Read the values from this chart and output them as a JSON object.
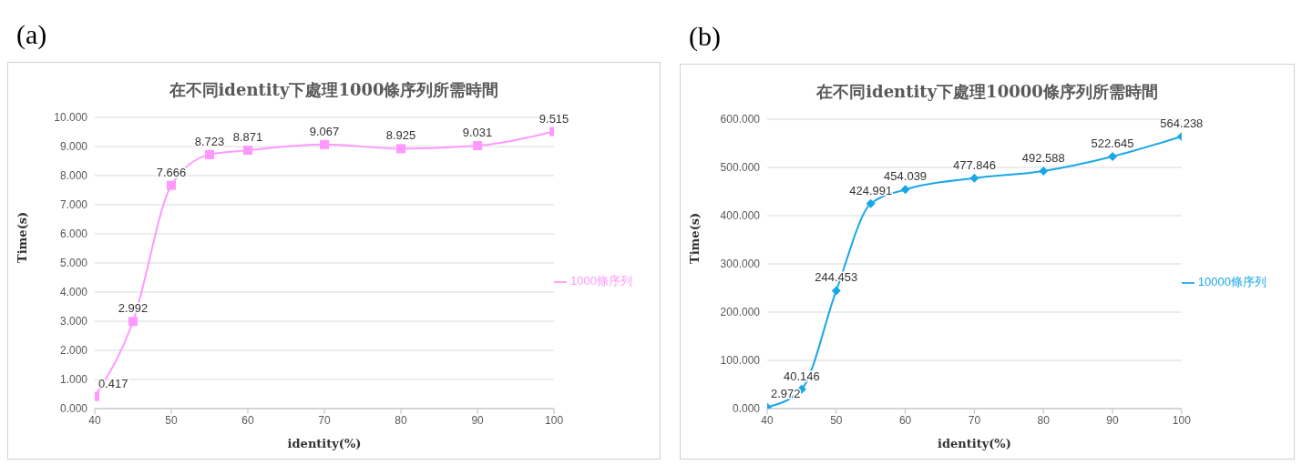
{
  "chart_data": [
    {
      "type": "line",
      "title": "在不同identity下處理1000條序列所需時間",
      "annotations": [
        "(a)"
      ],
      "xlabel": "identity(%)",
      "ylabel": "Time(s)",
      "x": [
        40,
        45,
        50,
        55,
        60,
        70,
        80,
        90,
        100
      ],
      "series": [
        {
          "name": "1000條序列",
          "color": "#ff99ff",
          "values": [
            0.417,
            2.992,
            7.666,
            8.723,
            8.871,
            9.067,
            8.925,
            9.031,
            9.515
          ]
        }
      ],
      "xlim": [
        40,
        100
      ],
      "xticks": [
        40,
        50,
        60,
        70,
        80,
        90,
        100
      ],
      "ylim": [
        0,
        10
      ],
      "yticks": [
        {
          "value": 0,
          "label": "0.000"
        },
        {
          "value": 1,
          "label": "1.000"
        },
        {
          "value": 2,
          "label": "2.000"
        },
        {
          "value": 3,
          "label": "3.000"
        },
        {
          "value": 4,
          "label": "4.000"
        },
        {
          "value": 5,
          "label": "5.000"
        },
        {
          "value": 6,
          "label": "6.000"
        },
        {
          "value": 7,
          "label": "7.000"
        },
        {
          "value": 8,
          "label": "8.000"
        },
        {
          "value": 9,
          "label": "9.000"
        },
        {
          "value": 10,
          "label": "10.000"
        }
      ],
      "grid": "y",
      "legend": "right",
      "marker": "square",
      "data_labels": true
    },
    {
      "type": "line",
      "title": "在不同identity下處理10000條序列所需時間",
      "annotations": [
        "(b)"
      ],
      "xlabel": "identity(%)",
      "ylabel": "Time(s)",
      "x": [
        40,
        45,
        50,
        55,
        60,
        70,
        80,
        90,
        100
      ],
      "series": [
        {
          "name": "10000條序列",
          "color": "#1aa7e8",
          "values": [
            2.972,
            40.146,
            244.453,
            424.991,
            454.039,
            477.846,
            492.588,
            522.645,
            564.238
          ]
        }
      ],
      "xlim": [
        40,
        100
      ],
      "xticks": [
        40,
        50,
        60,
        70,
        80,
        90,
        100
      ],
      "ylim": [
        0,
        600
      ],
      "yticks": [
        {
          "value": 0,
          "label": "0.000"
        },
        {
          "value": 100,
          "label": "100.000"
        },
        {
          "value": 200,
          "label": "200.000"
        },
        {
          "value": 300,
          "label": "300.000"
        },
        {
          "value": 400,
          "label": "400.000"
        },
        {
          "value": 500,
          "label": "500.000"
        },
        {
          "value": 600,
          "label": "600.000"
        }
      ],
      "grid": "y",
      "legend": "right",
      "marker": "diamond",
      "data_labels": true
    }
  ]
}
